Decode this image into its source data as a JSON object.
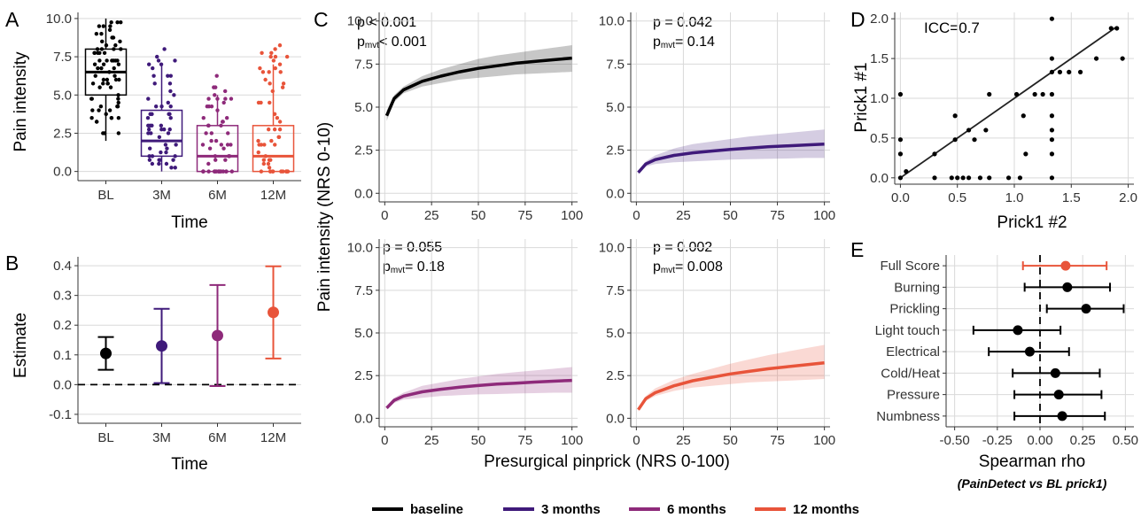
{
  "colors": {
    "BL": "#000000",
    "3M": "#3f1a7a",
    "6M": "#8e2a7a",
    "12M": "#e8543a",
    "grid": "#d9d9d9",
    "axis": "#333333"
  },
  "panel_labels": [
    "A",
    "B",
    "C",
    "D",
    "E"
  ],
  "legend": [
    {
      "key": "baseline",
      "label": "baseline",
      "color_key": "BL"
    },
    {
      "key": "3M",
      "label": "3 months",
      "color_key": "3M"
    },
    {
      "key": "6M",
      "label": "6 months",
      "color_key": "6M"
    },
    {
      "key": "12M",
      "label": "12 months",
      "color_key": "12M"
    }
  ],
  "chart_data": [
    {
      "id": "A",
      "type": "box",
      "xlabel": "Time",
      "ylabel": "Pain intensity",
      "categories": [
        "BL",
        "3M",
        "6M",
        "12M"
      ],
      "ylim": [
        -0.6,
        10.4
      ],
      "yticks": [
        "0.0",
        "2.5",
        "5.0",
        "7.5",
        "10.0"
      ],
      "boxes": [
        {
          "q1": 5.0,
          "median": 6.5,
          "q3": 8.0,
          "lo": 2.0,
          "hi": 10.0
        },
        {
          "q1": 1.0,
          "median": 2.0,
          "q3": 4.0,
          "lo": 0.0,
          "hi": 7.0
        },
        {
          "q1": 0.0,
          "median": 1.0,
          "q3": 3.0,
          "lo": 0.0,
          "hi": 5.0
        },
        {
          "q1": 0.0,
          "median": 1.0,
          "q3": 3.0,
          "lo": 0.0,
          "hi": 7.0
        }
      ]
    },
    {
      "id": "B",
      "type": "errorbar",
      "xlabel": "Time",
      "ylabel": "Estimate",
      "categories": [
        "BL",
        "3M",
        "6M",
        "12M"
      ],
      "ylim": [
        -0.13,
        0.43
      ],
      "yticks": [
        "-0.1",
        "0.0",
        "0.1",
        "0.2",
        "0.3",
        "0.4"
      ],
      "reference_line": 0,
      "points": [
        {
          "est": 0.105,
          "lo": 0.05,
          "hi": 0.16
        },
        {
          "est": 0.13,
          "lo": 0.005,
          "hi": 0.255
        },
        {
          "est": 0.165,
          "lo": -0.005,
          "hi": 0.335
        },
        {
          "est": 0.243,
          "lo": 0.088,
          "hi": 0.398
        }
      ]
    },
    {
      "id": "C",
      "type": "line",
      "xlabel": "Presurgical pinprick (NRS 0-100)",
      "ylabel": "Pain intensity (NRS 0-10)",
      "xlim": [
        -3,
        103
      ],
      "ylim": [
        -0.5,
        10.5
      ],
      "xticks": [
        "0",
        "25",
        "50",
        "75",
        "100"
      ],
      "yticks": [
        "0.0",
        "2.5",
        "5.0",
        "7.5",
        "10.0"
      ],
      "x": [
        1,
        5,
        10,
        20,
        30,
        40,
        50,
        60,
        70,
        80,
        90,
        100
      ],
      "panels": [
        {
          "series": "BL",
          "p_text": "p < 0.001",
          "pmvt_text": "< 0.001",
          "y": [
            4.5,
            5.5,
            6.0,
            6.5,
            6.8,
            7.05,
            7.25,
            7.4,
            7.55,
            7.65,
            7.75,
            7.85
          ],
          "lo": [
            4.2,
            5.3,
            5.8,
            6.2,
            6.4,
            6.6,
            6.7,
            6.8,
            6.9,
            6.95,
            7.0,
            7.05
          ],
          "hi": [
            4.8,
            5.7,
            6.2,
            6.8,
            7.2,
            7.5,
            7.8,
            8.0,
            8.15,
            8.3,
            8.45,
            8.6
          ]
        },
        {
          "series": "3M",
          "p_text": "p = 0.042",
          "pmvt_text": "= 0.14",
          "y": [
            1.2,
            1.7,
            1.95,
            2.2,
            2.35,
            2.45,
            2.55,
            2.62,
            2.7,
            2.75,
            2.8,
            2.85
          ],
          "lo": [
            1.1,
            1.55,
            1.7,
            1.8,
            1.85,
            1.9,
            1.95,
            1.98,
            2.0,
            2.02,
            2.05,
            2.05
          ],
          "hi": [
            1.3,
            1.85,
            2.2,
            2.6,
            2.85,
            3.0,
            3.15,
            3.3,
            3.4,
            3.5,
            3.6,
            3.7
          ]
        },
        {
          "series": "6M",
          "p_text": "p = 0.055",
          "pmvt_text": "= 0.18",
          "y": [
            0.6,
            1.05,
            1.3,
            1.55,
            1.7,
            1.82,
            1.92,
            2.0,
            2.06,
            2.12,
            2.17,
            2.22
          ],
          "lo": [
            0.5,
            0.9,
            1.1,
            1.2,
            1.3,
            1.35,
            1.4,
            1.42,
            1.45,
            1.47,
            1.5,
            1.5
          ],
          "hi": [
            0.7,
            1.2,
            1.5,
            1.9,
            2.1,
            2.3,
            2.45,
            2.6,
            2.7,
            2.8,
            2.9,
            3.0
          ]
        },
        {
          "series": "12M",
          "p_text": "p = 0.002",
          "pmvt_text": "= 0.008",
          "y": [
            0.5,
            1.15,
            1.5,
            1.9,
            2.2,
            2.4,
            2.6,
            2.75,
            2.9,
            3.02,
            3.13,
            3.25
          ],
          "lo": [
            0.4,
            1.0,
            1.3,
            1.6,
            1.8,
            1.9,
            2.0,
            2.1,
            2.15,
            2.2,
            2.25,
            2.3
          ],
          "hi": [
            0.6,
            1.3,
            1.75,
            2.25,
            2.6,
            2.9,
            3.2,
            3.45,
            3.7,
            3.9,
            4.1,
            4.3
          ]
        }
      ]
    },
    {
      "id": "D",
      "type": "scatter",
      "xlabel": "Prick1 #2",
      "ylabel": "Prick1 #1",
      "annotation": "ICC=0.7",
      "xlim": [
        -0.05,
        2.05
      ],
      "ylim": [
        -0.08,
        2.08
      ],
      "xticks": [
        "0.0",
        "0.5",
        "1.0",
        "1.5",
        "2.0"
      ],
      "yticks": [
        "0.0",
        "0.5",
        "1.0",
        "1.5",
        "2.0"
      ],
      "fit_line": {
        "x": [
          0.0,
          1.9
        ],
        "y": [
          0.0,
          1.9
        ]
      },
      "points": [
        [
          0.0,
          0.0
        ],
        [
          0.0,
          0.3
        ],
        [
          0.0,
          0.48
        ],
        [
          0.0,
          1.05
        ],
        [
          0.3,
          0.0
        ],
        [
          0.3,
          0.3
        ],
        [
          0.45,
          0.0
        ],
        [
          0.48,
          0.48
        ],
        [
          0.48,
          0.78
        ],
        [
          0.55,
          0.0
        ],
        [
          0.6,
          0.0
        ],
        [
          0.6,
          0.6
        ],
        [
          0.65,
          0.48
        ],
        [
          0.7,
          0.0
        ],
        [
          0.75,
          0.6
        ],
        [
          0.78,
          1.05
        ],
        [
          0.78,
          0.0
        ],
        [
          0.95,
          0.0
        ],
        [
          1.02,
          1.05
        ],
        [
          1.05,
          0.0
        ],
        [
          1.08,
          0.78
        ],
        [
          1.1,
          0.3
        ],
        [
          1.18,
          1.05
        ],
        [
          1.25,
          1.05
        ],
        [
          1.33,
          0.0
        ],
        [
          1.33,
          0.3
        ],
        [
          1.33,
          0.48
        ],
        [
          1.33,
          0.6
        ],
        [
          1.33,
          0.78
        ],
        [
          1.33,
          1.05
        ],
        [
          1.33,
          1.33
        ],
        [
          1.33,
          1.5
        ],
        [
          1.33,
          2.0
        ],
        [
          1.4,
          1.33
        ],
        [
          1.48,
          1.33
        ],
        [
          1.58,
          1.33
        ],
        [
          1.72,
          1.5
        ],
        [
          1.85,
          1.88
        ],
        [
          1.95,
          1.5
        ],
        [
          1.9,
          1.88
        ],
        [
          0.05,
          0.08
        ],
        [
          0.5,
          0.0
        ]
      ]
    },
    {
      "id": "E",
      "type": "forest",
      "xlabel": "Spearman rho",
      "subtitle": "(PainDetect vs BL prick1)",
      "xlim": [
        -0.55,
        0.55
      ],
      "xticks": [
        "-0.50",
        "-0.25",
        "0.00",
        "0.25",
        "0.50"
      ],
      "reference_line": 0,
      "rows": [
        {
          "label": "Full Score",
          "est": 0.15,
          "lo": -0.1,
          "hi": 0.39,
          "highlight": true
        },
        {
          "label": "Burning",
          "est": 0.16,
          "lo": -0.09,
          "hi": 0.41,
          "highlight": false
        },
        {
          "label": "Prickling",
          "est": 0.27,
          "lo": 0.04,
          "hi": 0.49,
          "highlight": false
        },
        {
          "label": "Light touch",
          "est": -0.13,
          "lo": -0.39,
          "hi": 0.12,
          "highlight": false
        },
        {
          "label": "Electrical",
          "est": -0.06,
          "lo": -0.3,
          "hi": 0.17,
          "highlight": false
        },
        {
          "label": "Cold/Heat",
          "est": 0.09,
          "lo": -0.16,
          "hi": 0.35,
          "highlight": false
        },
        {
          "label": "Pressure",
          "est": 0.11,
          "lo": -0.15,
          "hi": 0.36,
          "highlight": false
        },
        {
          "label": "Numbness",
          "est": 0.13,
          "lo": -0.15,
          "hi": 0.38,
          "highlight": false
        }
      ]
    }
  ]
}
